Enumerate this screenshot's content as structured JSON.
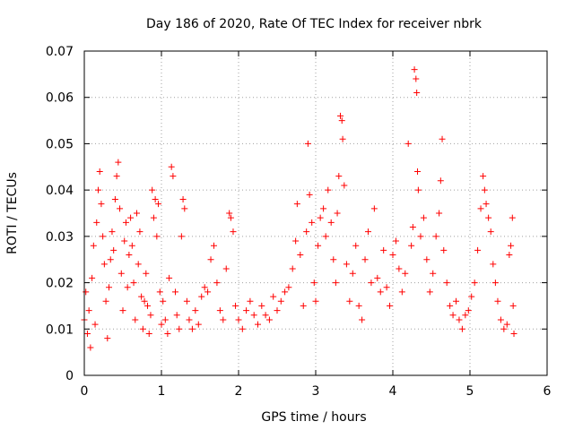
{
  "chart_data": {
    "type": "scatter",
    "title": "Day 186 of 2020, Rate Of TEC Index for receiver nbrk",
    "xlabel": "GPS time / hours",
    "ylabel": "ROTI / TECUs",
    "xlim": [
      0,
      6
    ],
    "ylim": [
      0,
      0.07
    ],
    "xticks": [
      0,
      1,
      2,
      3,
      4,
      5,
      6
    ],
    "xtick_labels": [
      "0",
      "1",
      "2",
      "3",
      "4",
      "5",
      "6"
    ],
    "yticks": [
      0,
      0.01,
      0.02,
      0.03,
      0.04,
      0.05,
      0.06,
      0.07
    ],
    "ytick_labels": [
      "0",
      "0.01",
      "0.02",
      "0.03",
      "0.04",
      "0.05",
      "0.06",
      "0.07"
    ],
    "grid": true,
    "marker": "+",
    "marker_color": "#ff0000",
    "series": [
      {
        "name": "ROTI",
        "points": [
          [
            0.0,
            0.012
          ],
          [
            0.02,
            0.018
          ],
          [
            0.04,
            0.009
          ],
          [
            0.06,
            0.014
          ],
          [
            0.08,
            0.006
          ],
          [
            0.1,
            0.021
          ],
          [
            0.12,
            0.028
          ],
          [
            0.14,
            0.011
          ],
          [
            0.16,
            0.033
          ],
          [
            0.18,
            0.04
          ],
          [
            0.2,
            0.044
          ],
          [
            0.22,
            0.037
          ],
          [
            0.24,
            0.03
          ],
          [
            0.26,
            0.024
          ],
          [
            0.28,
            0.016
          ],
          [
            0.3,
            0.008
          ],
          [
            0.32,
            0.019
          ],
          [
            0.34,
            0.025
          ],
          [
            0.36,
            0.031
          ],
          [
            0.38,
            0.027
          ],
          [
            0.4,
            0.038
          ],
          [
            0.42,
            0.043
          ],
          [
            0.44,
            0.046
          ],
          [
            0.46,
            0.036
          ],
          [
            0.48,
            0.022
          ],
          [
            0.5,
            0.014
          ],
          [
            0.52,
            0.029
          ],
          [
            0.54,
            0.033
          ],
          [
            0.56,
            0.019
          ],
          [
            0.58,
            0.026
          ],
          [
            0.6,
            0.034
          ],
          [
            0.62,
            0.028
          ],
          [
            0.64,
            0.02
          ],
          [
            0.66,
            0.012
          ],
          [
            0.68,
            0.035
          ],
          [
            0.7,
            0.024
          ],
          [
            0.72,
            0.031
          ],
          [
            0.74,
            0.017
          ],
          [
            0.76,
            0.01
          ],
          [
            0.78,
            0.016
          ],
          [
            0.8,
            0.022
          ],
          [
            0.82,
            0.015
          ],
          [
            0.84,
            0.009
          ],
          [
            0.86,
            0.013
          ],
          [
            0.88,
            0.04
          ],
          [
            0.9,
            0.034
          ],
          [
            0.92,
            0.038
          ],
          [
            0.94,
            0.03
          ],
          [
            0.96,
            0.037
          ],
          [
            0.98,
            0.018
          ],
          [
            1.0,
            0.011
          ],
          [
            1.02,
            0.016
          ],
          [
            1.05,
            0.012
          ],
          [
            1.08,
            0.009
          ],
          [
            1.1,
            0.021
          ],
          [
            1.13,
            0.045
          ],
          [
            1.15,
            0.043
          ],
          [
            1.18,
            0.018
          ],
          [
            1.2,
            0.013
          ],
          [
            1.23,
            0.01
          ],
          [
            1.26,
            0.03
          ],
          [
            1.28,
            0.038
          ],
          [
            1.3,
            0.036
          ],
          [
            1.33,
            0.016
          ],
          [
            1.36,
            0.012
          ],
          [
            1.4,
            0.01
          ],
          [
            1.44,
            0.014
          ],
          [
            1.48,
            0.011
          ],
          [
            1.52,
            0.017
          ],
          [
            1.56,
            0.019
          ],
          [
            1.6,
            0.018
          ],
          [
            1.64,
            0.025
          ],
          [
            1.68,
            0.028
          ],
          [
            1.72,
            0.02
          ],
          [
            1.76,
            0.014
          ],
          [
            1.8,
            0.012
          ],
          [
            1.84,
            0.023
          ],
          [
            1.88,
            0.035
          ],
          [
            1.9,
            0.034
          ],
          [
            1.93,
            0.031
          ],
          [
            1.96,
            0.015
          ],
          [
            2.0,
            0.012
          ],
          [
            2.05,
            0.01
          ],
          [
            2.1,
            0.014
          ],
          [
            2.15,
            0.016
          ],
          [
            2.2,
            0.013
          ],
          [
            2.25,
            0.011
          ],
          [
            2.3,
            0.015
          ],
          [
            2.35,
            0.013
          ],
          [
            2.4,
            0.012
          ],
          [
            2.45,
            0.017
          ],
          [
            2.5,
            0.014
          ],
          [
            2.55,
            0.016
          ],
          [
            2.6,
            0.018
          ],
          [
            2.65,
            0.019
          ],
          [
            2.7,
            0.023
          ],
          [
            2.74,
            0.029
          ],
          [
            2.76,
            0.037
          ],
          [
            2.8,
            0.026
          ],
          [
            2.84,
            0.015
          ],
          [
            2.88,
            0.031
          ],
          [
            2.9,
            0.05
          ],
          [
            2.92,
            0.039
          ],
          [
            2.95,
            0.033
          ],
          [
            2.98,
            0.02
          ],
          [
            3.0,
            0.016
          ],
          [
            3.03,
            0.028
          ],
          [
            3.06,
            0.034
          ],
          [
            3.1,
            0.036
          ],
          [
            3.13,
            0.03
          ],
          [
            3.16,
            0.04
          ],
          [
            3.2,
            0.033
          ],
          [
            3.23,
            0.025
          ],
          [
            3.26,
            0.02
          ],
          [
            3.28,
            0.035
          ],
          [
            3.3,
            0.043
          ],
          [
            3.32,
            0.056
          ],
          [
            3.34,
            0.055
          ],
          [
            3.35,
            0.051
          ],
          [
            3.37,
            0.041
          ],
          [
            3.4,
            0.024
          ],
          [
            3.44,
            0.016
          ],
          [
            3.48,
            0.022
          ],
          [
            3.52,
            0.028
          ],
          [
            3.56,
            0.015
          ],
          [
            3.6,
            0.012
          ],
          [
            3.64,
            0.025
          ],
          [
            3.68,
            0.031
          ],
          [
            3.72,
            0.02
          ],
          [
            3.76,
            0.036
          ],
          [
            3.8,
            0.021
          ],
          [
            3.84,
            0.018
          ],
          [
            3.88,
            0.027
          ],
          [
            3.92,
            0.019
          ],
          [
            3.96,
            0.015
          ],
          [
            4.0,
            0.026
          ],
          [
            4.04,
            0.029
          ],
          [
            4.08,
            0.023
          ],
          [
            4.12,
            0.018
          ],
          [
            4.16,
            0.022
          ],
          [
            4.2,
            0.05
          ],
          [
            4.24,
            0.028
          ],
          [
            4.26,
            0.032
          ],
          [
            4.28,
            0.066
          ],
          [
            4.3,
            0.064
          ],
          [
            4.31,
            0.061
          ],
          [
            4.32,
            0.044
          ],
          [
            4.33,
            0.04
          ],
          [
            4.36,
            0.03
          ],
          [
            4.4,
            0.034
          ],
          [
            4.44,
            0.025
          ],
          [
            4.48,
            0.018
          ],
          [
            4.52,
            0.022
          ],
          [
            4.56,
            0.03
          ],
          [
            4.6,
            0.035
          ],
          [
            4.62,
            0.042
          ],
          [
            4.64,
            0.051
          ],
          [
            4.66,
            0.027
          ],
          [
            4.7,
            0.02
          ],
          [
            4.74,
            0.015
          ],
          [
            4.78,
            0.013
          ],
          [
            4.82,
            0.016
          ],
          [
            4.86,
            0.012
          ],
          [
            4.9,
            0.01
          ],
          [
            4.94,
            0.013
          ],
          [
            4.98,
            0.014
          ],
          [
            5.02,
            0.017
          ],
          [
            5.06,
            0.02
          ],
          [
            5.1,
            0.027
          ],
          [
            5.14,
            0.036
          ],
          [
            5.17,
            0.043
          ],
          [
            5.19,
            0.04
          ],
          [
            5.21,
            0.037
          ],
          [
            5.24,
            0.034
          ],
          [
            5.27,
            0.031
          ],
          [
            5.3,
            0.024
          ],
          [
            5.33,
            0.02
          ],
          [
            5.36,
            0.016
          ],
          [
            5.4,
            0.012
          ],
          [
            5.44,
            0.01
          ],
          [
            5.48,
            0.011
          ],
          [
            5.51,
            0.026
          ],
          [
            5.53,
            0.028
          ],
          [
            5.55,
            0.034
          ],
          [
            5.56,
            0.015
          ],
          [
            5.57,
            0.009
          ]
        ]
      }
    ]
  }
}
